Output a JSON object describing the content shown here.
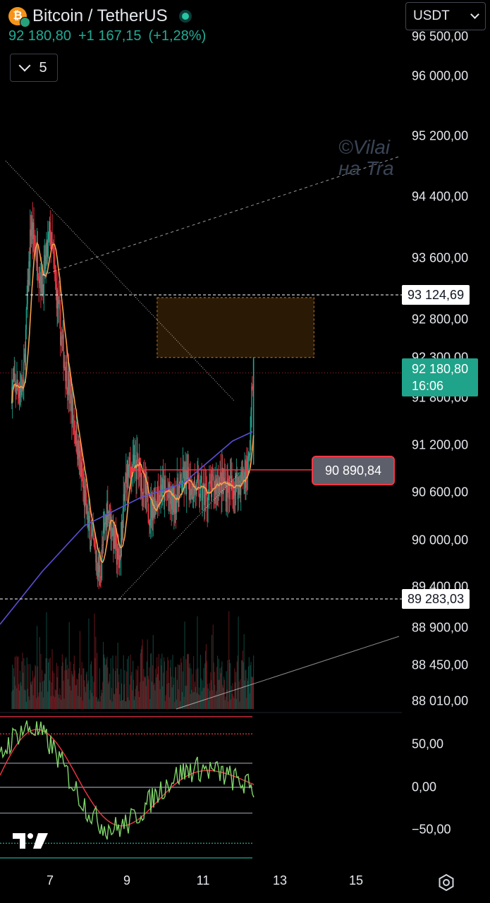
{
  "header": {
    "symbol": "Bitcoin / TetherUS",
    "last_price": "92 180,80",
    "change": "+1 167,15",
    "change_percent": "(+1,28%)",
    "interval": "5",
    "currency": "USDT"
  },
  "watermark": {
    "line1": "©Vilai",
    "line2": "на Tra"
  },
  "price_axis": {
    "labels": [
      "96 500,00",
      "96 000,00",
      "95 200,00",
      "94 400,00",
      "93 600,00",
      "92 800,00",
      "92 300,00",
      "91 800,00",
      "91 200,00",
      "90 600,00",
      "90 000,00",
      "89 400,00",
      "88 900,00",
      "88 450,00",
      "88 010,00"
    ]
  },
  "price_tags": {
    "upper_level": "93 124,69",
    "current_price": "92 180,80",
    "countdown": "16:06",
    "lower_level": "89 283,03",
    "measure_value": "90 890,84"
  },
  "oscillator_axis": {
    "labels": [
      "50,00",
      "0,00",
      "−50,00"
    ]
  },
  "time_axis": {
    "labels": [
      "7",
      "9",
      "11",
      "13",
      "15"
    ]
  },
  "colors": {
    "background": "#000000",
    "up": "#22ab94",
    "down": "#f23645",
    "ma_fast": "#f5a04a",
    "ma_slow": "#5b4fd6",
    "zone_fill": "#2a1a05",
    "zone_border": "#c87a2a"
  },
  "icons": {
    "logo": "tradingview-logo-icon",
    "settings": "gear-icon",
    "coin": "bitcoin-icon",
    "status": "market-open-dot-icon"
  },
  "chart_data": {
    "type": "candlestick",
    "symbol": "Bitcoin / TetherUS",
    "interval": "5",
    "x_ticks": [
      "7",
      "9",
      "11",
      "13",
      "15"
    ],
    "ylim": [
      87800,
      96700
    ],
    "approx_close_path": [
      [
        6.3,
        92000
      ],
      [
        6.5,
        94100
      ],
      [
        6.8,
        93300
      ],
      [
        7.0,
        94000
      ],
      [
        7.3,
        92600
      ],
      [
        7.7,
        91300
      ],
      [
        8.0,
        90200
      ],
      [
        8.3,
        89600
      ],
      [
        8.5,
        90500
      ],
      [
        8.8,
        89700
      ],
      [
        9.0,
        90900
      ],
      [
        9.3,
        91000
      ],
      [
        9.6,
        90400
      ],
      [
        9.9,
        90700
      ],
      [
        10.2,
        90500
      ],
      [
        10.5,
        90800
      ],
      [
        10.8,
        90700
      ],
      [
        11.1,
        90600
      ],
      [
        11.4,
        90800
      ],
      [
        11.7,
        90700
      ],
      [
        12.0,
        90800
      ],
      [
        12.2,
        91000
      ],
      [
        12.3,
        92180
      ]
    ],
    "key_levels": {
      "resistance": 93124.69,
      "support": 89283.03,
      "measured": 90890.84,
      "last": 92180.8
    },
    "supply_zone": {
      "x": [
        9.8,
        13.9
      ],
      "y": [
        92380,
        93150
      ]
    },
    "oscillator": {
      "levels": [
        50,
        0,
        -50
      ],
      "guides": [
        82,
        62,
        28,
        0,
        -30,
        -65,
        -82
      ]
    }
  }
}
